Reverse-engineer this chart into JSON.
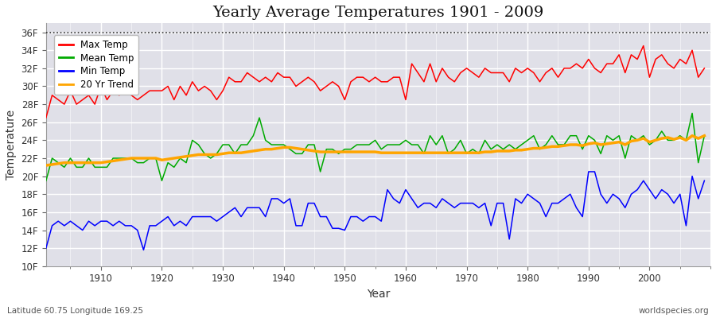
{
  "title": "Yearly Average Temperatures 1901 - 2009",
  "xlabel": "Year",
  "ylabel": "Temperature",
  "subtitle_lat": "Latitude 60.75 Longitude 169.25",
  "credit": "worldspecies.org",
  "years": [
    1901,
    1902,
    1903,
    1904,
    1905,
    1906,
    1907,
    1908,
    1909,
    1910,
    1911,
    1912,
    1913,
    1914,
    1915,
    1916,
    1917,
    1918,
    1919,
    1920,
    1921,
    1922,
    1923,
    1924,
    1925,
    1926,
    1927,
    1928,
    1929,
    1930,
    1931,
    1932,
    1933,
    1934,
    1935,
    1936,
    1937,
    1938,
    1939,
    1940,
    1941,
    1942,
    1943,
    1944,
    1945,
    1946,
    1947,
    1948,
    1949,
    1950,
    1951,
    1952,
    1953,
    1954,
    1955,
    1956,
    1957,
    1958,
    1959,
    1960,
    1961,
    1962,
    1963,
    1964,
    1965,
    1966,
    1967,
    1968,
    1969,
    1970,
    1971,
    1972,
    1973,
    1974,
    1975,
    1976,
    1977,
    1978,
    1979,
    1980,
    1981,
    1982,
    1983,
    1984,
    1985,
    1986,
    1987,
    1988,
    1989,
    1990,
    1991,
    1992,
    1993,
    1994,
    1995,
    1996,
    1997,
    1998,
    1999,
    2000,
    2001,
    2002,
    2003,
    2004,
    2005,
    2006,
    2007,
    2008,
    2009
  ],
  "max_temp": [
    26.5,
    29.0,
    28.5,
    28.0,
    29.5,
    28.0,
    28.5,
    29.0,
    28.0,
    30.0,
    28.5,
    29.5,
    29.0,
    29.5,
    29.0,
    28.5,
    29.0,
    29.5,
    29.5,
    29.5,
    30.0,
    28.5,
    30.0,
    29.0,
    30.5,
    29.5,
    30.0,
    29.5,
    28.5,
    29.5,
    31.0,
    30.5,
    30.5,
    31.5,
    31.0,
    30.5,
    31.0,
    30.5,
    31.5,
    31.0,
    31.0,
    30.0,
    30.5,
    31.0,
    30.5,
    29.5,
    30.0,
    30.5,
    30.0,
    28.5,
    30.5,
    31.0,
    31.0,
    30.5,
    31.0,
    30.5,
    30.5,
    31.0,
    31.0,
    28.5,
    32.5,
    31.5,
    30.5,
    32.5,
    30.5,
    32.0,
    31.0,
    30.5,
    31.5,
    32.0,
    31.5,
    31.0,
    32.0,
    31.5,
    31.5,
    31.5,
    30.5,
    32.0,
    31.5,
    32.0,
    31.5,
    30.5,
    31.5,
    32.0,
    31.0,
    32.0,
    32.0,
    32.5,
    32.0,
    33.0,
    32.0,
    31.5,
    32.5,
    32.5,
    33.5,
    31.5,
    33.5,
    33.0,
    34.5,
    31.0,
    33.0,
    33.5,
    32.5,
    32.0,
    33.0,
    32.5,
    34.0,
    31.0,
    32.0
  ],
  "mean_temp": [
    19.5,
    22.0,
    21.5,
    21.0,
    22.0,
    21.0,
    21.0,
    22.0,
    21.0,
    21.0,
    21.0,
    22.0,
    22.0,
    22.0,
    22.0,
    21.5,
    21.5,
    22.0,
    22.0,
    19.5,
    21.5,
    21.0,
    22.0,
    21.5,
    24.0,
    23.5,
    22.5,
    22.0,
    22.5,
    23.5,
    23.5,
    22.5,
    23.5,
    23.5,
    24.5,
    26.5,
    24.0,
    23.5,
    23.5,
    23.5,
    23.0,
    22.5,
    22.5,
    23.5,
    23.5,
    20.5,
    23.0,
    23.0,
    22.5,
    23.0,
    23.0,
    23.5,
    23.5,
    23.5,
    24.0,
    23.0,
    23.5,
    23.5,
    23.5,
    24.0,
    23.5,
    23.5,
    22.5,
    24.5,
    23.5,
    24.5,
    22.5,
    23.0,
    24.0,
    22.5,
    23.0,
    22.5,
    24.0,
    23.0,
    23.5,
    23.0,
    23.5,
    23.0,
    23.5,
    24.0,
    24.5,
    23.0,
    23.5,
    24.5,
    23.5,
    23.5,
    24.5,
    24.5,
    23.0,
    24.5,
    24.0,
    22.5,
    24.5,
    24.0,
    24.5,
    22.0,
    24.5,
    24.0,
    24.5,
    23.5,
    24.0,
    25.0,
    24.0,
    24.0,
    24.5,
    24.0,
    27.0,
    21.5,
    24.5
  ],
  "min_temp": [
    12.0,
    14.5,
    15.0,
    14.5,
    15.0,
    14.5,
    14.0,
    15.0,
    14.5,
    15.0,
    15.0,
    14.5,
    15.0,
    14.5,
    14.5,
    14.0,
    11.8,
    14.5,
    14.5,
    15.0,
    15.5,
    14.5,
    15.0,
    14.5,
    15.5,
    15.5,
    15.5,
    15.5,
    15.0,
    15.5,
    16.0,
    16.5,
    15.5,
    16.5,
    16.5,
    16.5,
    15.5,
    17.5,
    17.5,
    17.0,
    17.5,
    14.5,
    14.5,
    17.0,
    17.0,
    15.5,
    15.5,
    14.2,
    14.2,
    14.0,
    15.5,
    15.5,
    15.0,
    15.5,
    15.5,
    15.0,
    18.5,
    17.5,
    17.0,
    18.5,
    17.5,
    16.5,
    17.0,
    17.0,
    16.5,
    17.5,
    17.0,
    16.5,
    17.0,
    17.0,
    17.0,
    16.5,
    17.0,
    14.5,
    17.0,
    17.0,
    13.0,
    17.5,
    17.0,
    18.0,
    17.5,
    17.0,
    15.5,
    17.0,
    17.0,
    17.5,
    18.0,
    16.5,
    15.5,
    20.5,
    20.5,
    18.0,
    17.0,
    18.0,
    17.5,
    16.5,
    18.0,
    18.5,
    19.5,
    18.5,
    17.5,
    18.5,
    18.0,
    17.0,
    18.0,
    14.5,
    20.0,
    17.5,
    19.5
  ],
  "trend_temp": [
    21.2,
    21.3,
    21.4,
    21.5,
    21.5,
    21.5,
    21.5,
    21.5,
    21.5,
    21.5,
    21.6,
    21.7,
    21.8,
    21.9,
    22.0,
    22.0,
    22.0,
    22.0,
    22.0,
    21.8,
    21.9,
    22.0,
    22.1,
    22.2,
    22.3,
    22.4,
    22.4,
    22.4,
    22.4,
    22.5,
    22.6,
    22.6,
    22.6,
    22.7,
    22.8,
    22.9,
    23.0,
    23.0,
    23.1,
    23.2,
    23.2,
    23.1,
    23.0,
    22.9,
    22.8,
    22.7,
    22.7,
    22.7,
    22.7,
    22.7,
    22.7,
    22.7,
    22.7,
    22.7,
    22.7,
    22.6,
    22.6,
    22.6,
    22.6,
    22.6,
    22.6,
    22.6,
    22.6,
    22.6,
    22.6,
    22.6,
    22.6,
    22.6,
    22.6,
    22.6,
    22.6,
    22.6,
    22.7,
    22.7,
    22.8,
    22.8,
    22.8,
    22.9,
    22.9,
    23.0,
    23.1,
    23.1,
    23.2,
    23.3,
    23.3,
    23.4,
    23.5,
    23.5,
    23.4,
    23.6,
    23.7,
    23.5,
    23.6,
    23.7,
    23.8,
    23.5,
    23.9,
    24.0,
    24.2,
    23.8,
    24.0,
    24.2,
    24.3,
    24.1,
    24.3,
    24.0,
    24.5,
    24.2,
    24.5
  ],
  "max_color": "#ff0000",
  "mean_color": "#00aa00",
  "min_color": "#0000ff",
  "trend_color": "#ffa500",
  "fig_bg_color": "#ffffff",
  "plot_bg_color": "#e0e0e8",
  "ylim": [
    10,
    37
  ],
  "yticks": [
    10,
    12,
    14,
    16,
    18,
    20,
    22,
    24,
    26,
    28,
    30,
    32,
    34,
    36
  ],
  "ytick_labels": [
    "10F",
    "12F",
    "14F",
    "16F",
    "18F",
    "20F",
    "22F",
    "24F",
    "26F",
    "28F",
    "30F",
    "32F",
    "34F",
    "36F"
  ],
  "hline_y": 36,
  "xlim": [
    1901,
    2010
  ],
  "xticks": [
    1910,
    1920,
    1930,
    1940,
    1950,
    1960,
    1970,
    1980,
    1990,
    2000
  ],
  "linewidth": 1.1,
  "trend_linewidth": 2.5
}
